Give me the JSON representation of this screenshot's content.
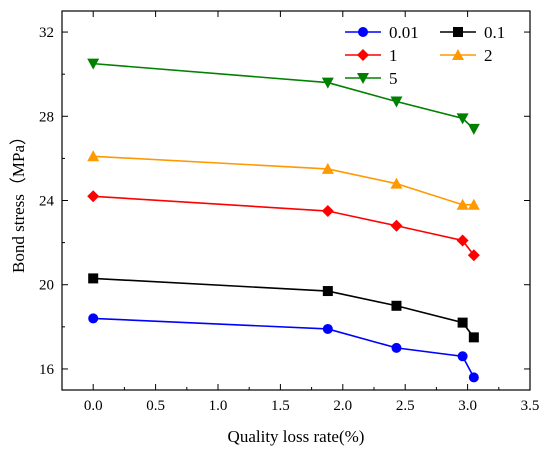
{
  "chart_data": {
    "type": "line",
    "title": "",
    "xlabel": "Quality loss rate(%)",
    "ylabel": "Bond stress（MPa）",
    "xlim": [
      -0.25,
      3.5
    ],
    "ylim": [
      15,
      33
    ],
    "xticks": [
      "0.0",
      "0.5",
      "1.0",
      "1.5",
      "2.0",
      "2.5",
      "3.0",
      "3.5"
    ],
    "yticks": [
      "16",
      "20",
      "24",
      "28",
      "32"
    ],
    "grid": false,
    "legend_position": "top-right",
    "series": [
      {
        "name": "0.01",
        "color": "#0000ff",
        "marker": "circle",
        "x": [
          0.0,
          1.88,
          2.43,
          2.96,
          3.05
        ],
        "y": [
          18.4,
          17.9,
          17.0,
          16.6,
          15.6
        ]
      },
      {
        "name": "0.1",
        "color": "#000000",
        "marker": "square",
        "x": [
          0.0,
          1.88,
          2.43,
          2.96,
          3.05
        ],
        "y": [
          20.3,
          19.7,
          19.0,
          18.2,
          17.5
        ]
      },
      {
        "name": "1",
        "color": "#ff0000",
        "marker": "diamond",
        "x": [
          0.0,
          1.88,
          2.43,
          2.96,
          3.05
        ],
        "y": [
          24.2,
          23.5,
          22.8,
          22.1,
          21.4
        ]
      },
      {
        "name": "2",
        "color": "#ff9900",
        "marker": "triangle-up",
        "x": [
          0.0,
          1.88,
          2.43,
          2.96,
          3.05
        ],
        "y": [
          26.1,
          25.5,
          24.8,
          23.8,
          23.8
        ]
      },
      {
        "name": "5",
        "color": "#008000",
        "marker": "triangle-down",
        "x": [
          0.0,
          1.88,
          2.43,
          2.96,
          3.05
        ],
        "y": [
          30.5,
          29.6,
          28.7,
          27.9,
          27.4
        ]
      }
    ]
  }
}
